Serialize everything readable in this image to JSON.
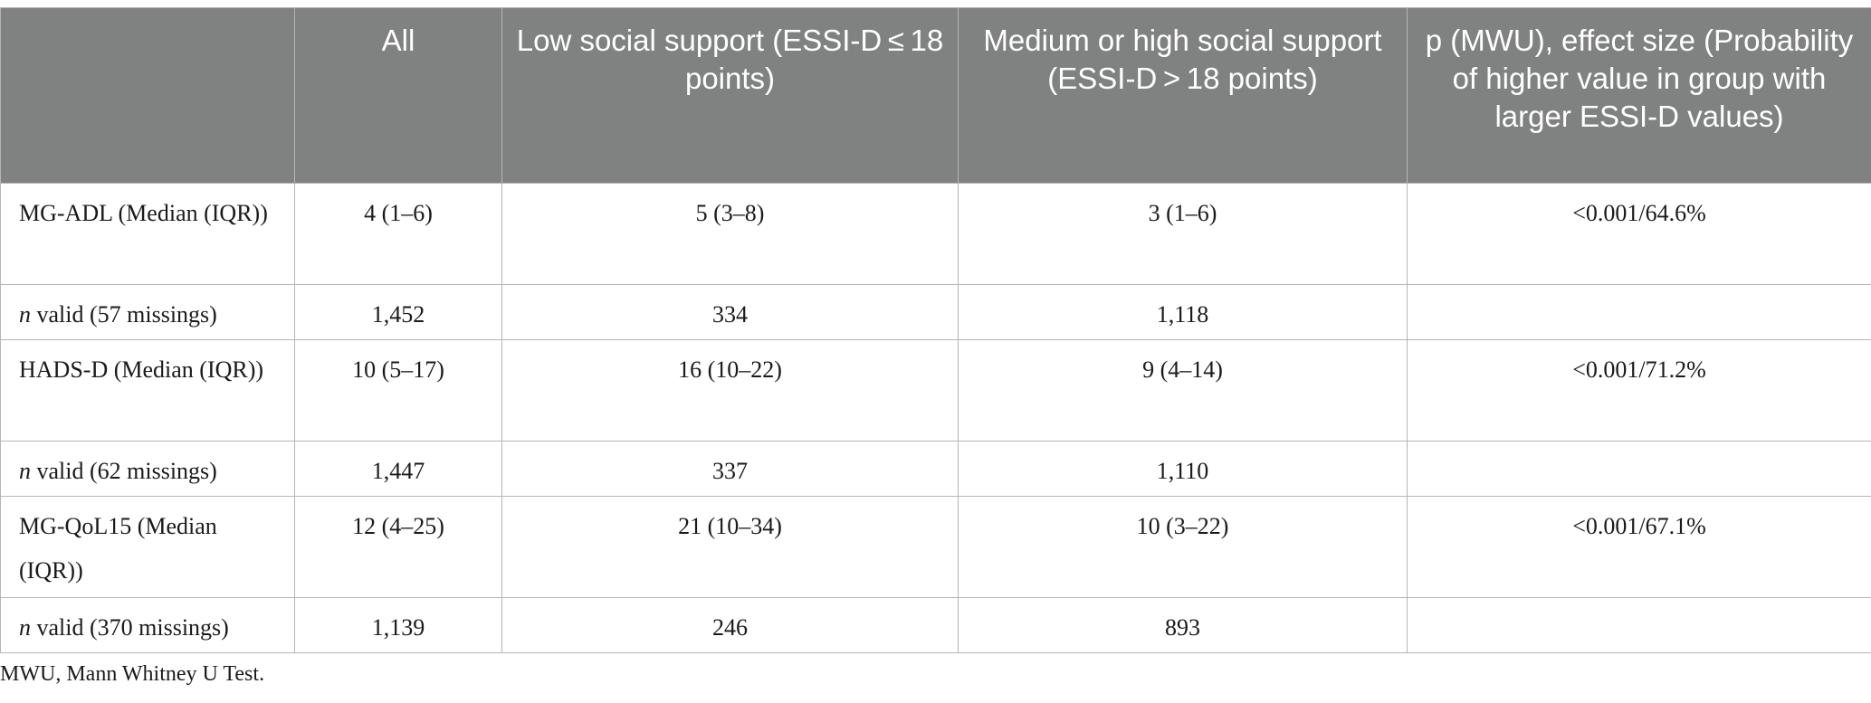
{
  "table": {
    "headers": [
      "",
      "All",
      "Low social support (ESSI-D ≤ 18 points)",
      "Medium or high social support (ESSI-D > 18 points)",
      "p (MWU), effect size (Probability of higher value in group with larger ESSI-D values)"
    ],
    "rows": [
      {
        "label": "MG-ADL (Median (IQR))",
        "label_italic_prefix": "",
        "all": "4 (1–6)",
        "low": "5 (3–8)",
        "medium_high": "3 (1–6)",
        "p": "<0.001/64.6%"
      },
      {
        "label": " valid (57 missings)",
        "label_italic_prefix": "n",
        "all": "1,452",
        "low": "334",
        "medium_high": "1,118",
        "p": ""
      },
      {
        "label": "HADS-D (Median (IQR))",
        "label_italic_prefix": "",
        "all": "10 (5–17)",
        "low": "16 (10–22)",
        "medium_high": "9 (4–14)",
        "p": "<0.001/71.2%"
      },
      {
        "label": " valid (62 missings)",
        "label_italic_prefix": "n",
        "all": "1,447",
        "low": "337",
        "medium_high": "1,110",
        "p": ""
      },
      {
        "label": "MG-QoL15 (Median (IQR))",
        "label_italic_prefix": "",
        "all": "12 (4–25)",
        "low": "21 (10–34)",
        "medium_high": "10 (3–22)",
        "p": "<0.001/67.1%"
      },
      {
        "label": " valid (370 missings)",
        "label_italic_prefix": "n",
        "all": "1,139",
        "low": "246",
        "medium_high": "893",
        "p": ""
      }
    ]
  },
  "footnote": "MWU, Mann Whitney U Test."
}
